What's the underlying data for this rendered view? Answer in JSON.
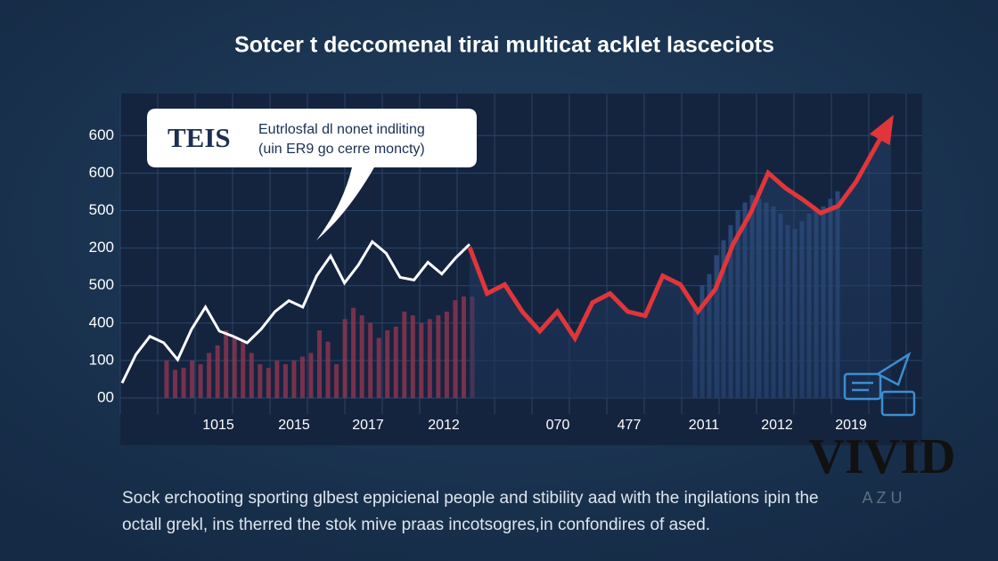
{
  "chart_data": {
    "type": "line",
    "title": "Sotcer t deccomenal tirai multicat acklet lasceciots",
    "callout": {
      "badge": "TEIS",
      "lines": [
        "Eutrlosfal dl nonet indliting",
        "(uin ER9 go cerre moncty)"
      ]
    },
    "y_labels": [
      "00",
      "100",
      "400",
      "500",
      "200",
      "500",
      "600",
      "600"
    ],
    "x_labels": [
      "1015",
      "2015",
      "2017",
      "2012",
      "070",
      "477",
      "2011",
      "2012",
      "2019"
    ],
    "ylim": [
      0,
      8.1
    ],
    "series": [
      {
        "color": "#ffffff",
        "values": [
          0.4,
          1.16,
          1.64,
          1.47,
          1.02,
          1.83,
          2.42,
          1.78,
          1.64,
          1.47,
          1.83,
          2.3,
          2.59,
          2.42,
          3.25,
          3.78,
          3.06,
          3.54,
          4.16,
          3.85,
          3.21,
          3.14,
          3.61,
          3.3,
          3.73,
          4.09
        ]
      },
      {
        "color": "#e0363a",
        "values": [
          4.01,
          2.78,
          3.02,
          2.3,
          1.78,
          2.3,
          1.59,
          2.54,
          2.78,
          2.3,
          2.19,
          3.25,
          3.02,
          2.3,
          2.9,
          4.09,
          4.92,
          5.99,
          5.58,
          5.27,
          4.92,
          5.11,
          5.75,
          6.58,
          7.41
        ]
      }
    ],
    "bars": [
      {
        "color": "#8a3450",
        "values": [
          1.0,
          0.75,
          0.8,
          1.0,
          0.9,
          1.2,
          1.4,
          1.8,
          1.6,
          1.5,
          1.2,
          0.9,
          0.8,
          1.0,
          0.9,
          1.0,
          1.1,
          1.2,
          1.8,
          1.5,
          0.9,
          2.1,
          2.4,
          2.2,
          2.0,
          1.6,
          1.8,
          1.9,
          2.3,
          2.2,
          2.0,
          2.1,
          2.2,
          2.3,
          2.6,
          2.7,
          2.7
        ]
      },
      {
        "color": "#2d4f82",
        "values": [
          2.4,
          3.0,
          3.3,
          3.8,
          4.2,
          4.6,
          5.0,
          5.2,
          5.4,
          5.3,
          5.2,
          5.1,
          4.9,
          4.6,
          4.5,
          4.7,
          4.9,
          5.0,
          5.1,
          5.3,
          5.5
        ]
      }
    ],
    "description": [
      "Sock erchooting sporting glbest eppicienal people and stibility aad with the ingilations ipin the",
      "octall grekl, ins therred the stok mive praas incotsogres,in confondires of ased."
    ],
    "watermark": {
      "brand": "VIVID",
      "sub": "A Z U"
    }
  }
}
